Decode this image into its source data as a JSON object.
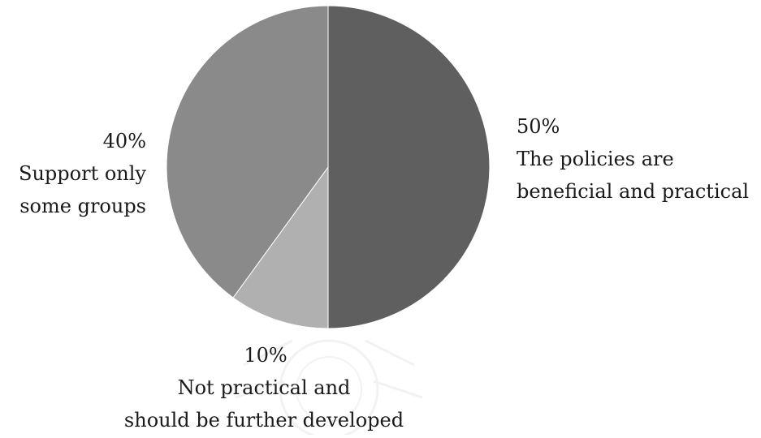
{
  "chart_data": {
    "type": "pie",
    "title": "",
    "start_angle_deg": 0,
    "direction": "clockwise",
    "slices": [
      {
        "label": "The policies are beneficial and practical",
        "value": 50,
        "percent_label": "50%",
        "label_lines": [
          "The policies are",
          "beneficial and practical"
        ],
        "color": "#5f5f5f"
      },
      {
        "label": "Not practical and should be further developed",
        "value": 10,
        "percent_label": "10%",
        "label_lines": [
          "Not practical and",
          "should be further developed"
        ],
        "color": "#b0b0b0"
      },
      {
        "label": "Support only some groups",
        "value": 40,
        "percent_label": "40%",
        "label_lines": [
          "Support only",
          "some groups"
        ],
        "color": "#8a8a8a"
      }
    ],
    "legend": "none",
    "slice_border_color": "#ffffff"
  },
  "watermark": {
    "description": "faint university seal behind bottom label",
    "color": "#e6e6e6"
  }
}
